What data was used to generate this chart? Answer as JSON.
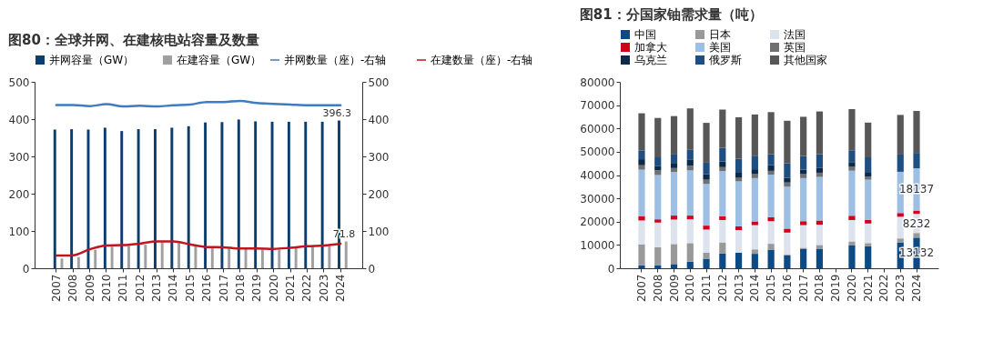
{
  "chart_data": [
    {
      "type": "bar",
      "title": "图80：全球并网、在建核电站容量及数量",
      "categories": [
        "2007",
        "2008",
        "2009",
        "2010",
        "2011",
        "2012",
        "2013",
        "2014",
        "2015",
        "2016",
        "2017",
        "2018",
        "2019",
        "2020",
        "2021",
        "2022",
        "2023",
        "2024"
      ],
      "series": [
        {
          "name": "并网容量（GW）",
          "type": "bar",
          "color": "#0b3d6e",
          "values": [
            372,
            373,
            372,
            377,
            368,
            373,
            373,
            377,
            381,
            391,
            392,
            399,
            394,
            393,
            393,
            393,
            393,
            396.3
          ],
          "value_labels": [
            null,
            null,
            null,
            null,
            null,
            null,
            null,
            null,
            null,
            null,
            null,
            null,
            null,
            null,
            null,
            null,
            null,
            "396.3"
          ]
        },
        {
          "name": "在建容量（GW）",
          "type": "bar",
          "color": "#a0a0a0",
          "values": [
            26,
            30,
            50,
            58,
            60,
            63,
            70,
            68,
            60,
            55,
            53,
            52,
            50,
            50,
            55,
            58,
            60,
            71.8
          ],
          "value_labels": [
            null,
            null,
            null,
            null,
            null,
            null,
            null,
            null,
            null,
            null,
            null,
            null,
            null,
            null,
            null,
            null,
            null,
            "71.8"
          ]
        },
        {
          "name": "并网数量（座）-右轴",
          "type": "line",
          "axis": "y2",
          "color": "#3f7cbf",
          "values": [
            438,
            438,
            435,
            440,
            434,
            436,
            434,
            437,
            439,
            446,
            446,
            449,
            443,
            441,
            439,
            437,
            437,
            437
          ]
        },
        {
          "name": "在建数量（座）-右轴",
          "type": "line",
          "axis": "y2",
          "color": "#c0141f",
          "values": [
            34,
            35,
            51,
            61,
            62,
            66,
            72,
            72,
            64,
            57,
            56,
            53,
            53,
            52,
            55,
            59,
            61,
            66
          ]
        }
      ],
      "ylim": [
        0,
        500
      ],
      "yticks": [
        0,
        100,
        200,
        300,
        400,
        500
      ],
      "y2lim": [
        0,
        500
      ],
      "y2ticks": [
        0,
        100,
        200,
        300,
        400,
        500
      ],
      "legend": "top"
    },
    {
      "type": "bar",
      "title": "图81：分国家铀需求量（吨）",
      "stacked": true,
      "categories": [
        "2007",
        "2008",
        "2009",
        "2010",
        "2011",
        "2012",
        "2013",
        "2014",
        "2015",
        "2016",
        "2017",
        "2018",
        "2019",
        "2020",
        "2021",
        "2022",
        "2023",
        "2024"
      ],
      "series": [
        {
          "name": "中国",
          "color": "#0b4a85",
          "values": [
            1300,
            1200,
            1800,
            2800,
            4100,
            6400,
            6700,
            6200,
            8000,
            5500,
            8200,
            8400,
            null,
            9800,
            9400,
            null,
            11100,
            13132
          ],
          "value_labels": [
            null,
            null,
            null,
            null,
            null,
            null,
            null,
            null,
            null,
            null,
            null,
            null,
            null,
            null,
            null,
            null,
            null,
            "13132"
          ]
        },
        {
          "name": "日本",
          "color": "#999999",
          "values": [
            9000,
            7800,
            8600,
            8000,
            2600,
            4700,
            null,
            1900,
            2500,
            500,
            600,
            1600,
            null,
            1700,
            1400,
            null,
            1700,
            2000
          ]
        },
        {
          "name": "法国",
          "color": "#dde3ee",
          "values": [
            10200,
            10600,
            10500,
            10200,
            9900,
            9600,
            9700,
            10400,
            9700,
            9300,
            9700,
            8700,
            null,
            9200,
            8400,
            null,
            9300,
            8232
          ],
          "value_labels": [
            null,
            null,
            null,
            null,
            null,
            null,
            null,
            null,
            null,
            null,
            null,
            null,
            null,
            null,
            null,
            null,
            null,
            "8232"
          ]
        },
        {
          "name": "加拿大",
          "color": "#d0021b",
          "values": [
            1900,
            1400,
            1700,
            1600,
            1700,
            1600,
            1600,
            1600,
            1700,
            1700,
            1700,
            1800,
            null,
            1800,
            1600,
            null,
            1600,
            1400
          ]
        },
        {
          "name": "美国",
          "color": "#9dbfe3",
          "values": [
            19900,
            19000,
            18700,
            19400,
            17900,
            19400,
            19300,
            18600,
            18300,
            18000,
            18500,
            18700,
            null,
            19400,
            17200,
            null,
            17700,
            18137
          ],
          "value_labels": [
            null,
            null,
            null,
            null,
            null,
            null,
            null,
            null,
            null,
            null,
            null,
            null,
            null,
            null,
            null,
            null,
            null,
            "18137"
          ]
        },
        {
          "name": "英国",
          "color": "#707070",
          "values": [
            1900,
            2000,
            1700,
            2000,
            1800,
            1700,
            1500,
            1700,
            1600,
            1800,
            1700,
            1800,
            null,
            1600,
            1300,
            null,
            0,
            0
          ]
        },
        {
          "name": "乌克兰",
          "color": "#0d2a4a",
          "values": [
            2600,
            1800,
            2200,
            2500,
            2300,
            2400,
            2500,
            2100,
            2400,
            2000,
            1900,
            2000,
            null,
            2100,
            2000,
            null,
            0,
            0
          ]
        },
        {
          "name": "俄罗斯",
          "color": "#1f4e80",
          "values": [
            3800,
            3800,
            3900,
            4300,
            5000,
            5900,
            5700,
            5800,
            4700,
            6200,
            5900,
            6000,
            null,
            5000,
            6300,
            null,
            7400,
            6600
          ]
        },
        {
          "name": "其他国家",
          "color": "#575757",
          "values": [
            15900,
            16900,
            16200,
            17800,
            17100,
            16400,
            17800,
            17700,
            18100,
            18300,
            16800,
            18300,
            null,
            17700,
            14900,
            null,
            17000,
            18000
          ]
        }
      ],
      "ylim": [
        0,
        80000
      ],
      "yticks": [
        0,
        10000,
        20000,
        30000,
        40000,
        50000,
        60000,
        70000,
        80000
      ],
      "legend": "top"
    }
  ]
}
